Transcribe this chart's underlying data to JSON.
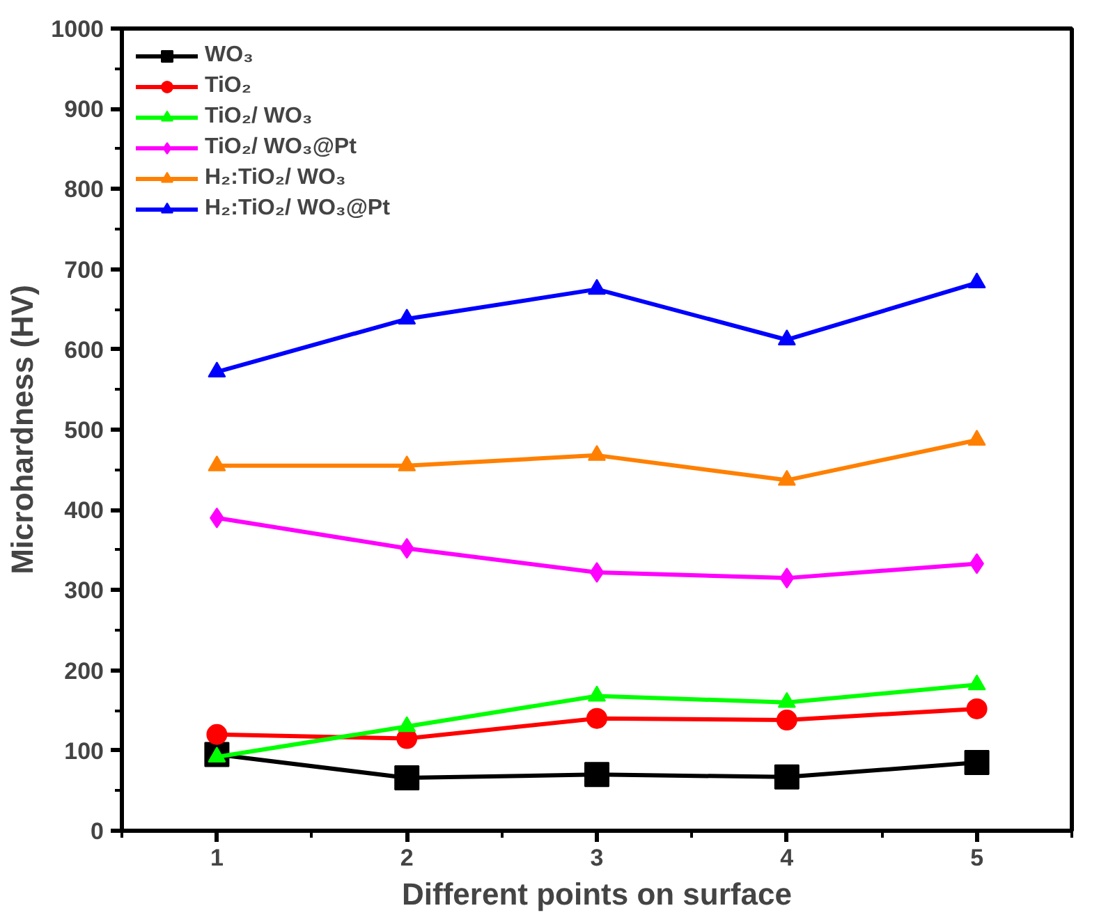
{
  "chart_data": {
    "type": "line",
    "xlabel": "Different points on surface",
    "ylabel": "Microhardness (HV)",
    "x": [
      1,
      2,
      3,
      4,
      5
    ],
    "xlim": [
      0.5,
      5.5
    ],
    "xticks": [
      1,
      2,
      3,
      4,
      5
    ],
    "ylim": [
      0,
      1000
    ],
    "yticks": [
      0,
      100,
      200,
      300,
      400,
      500,
      600,
      700,
      800,
      900,
      1000
    ],
    "grid": false,
    "legend": "top left",
    "line_style": "solid",
    "series": [
      {
        "name": "WO₃",
        "color": "#000000",
        "marker": "square",
        "values": [
          95,
          66,
          70,
          67,
          85
        ]
      },
      {
        "name": "TiO₂",
        "color": "#ff0000",
        "marker": "circle",
        "values": [
          120,
          115,
          140,
          138,
          152
        ]
      },
      {
        "name": "TiO₂/ WO₃",
        "color": "#00ff00",
        "marker": "triangle",
        "values": [
          92,
          130,
          168,
          160,
          182
        ]
      },
      {
        "name": "TiO₂/ WO₃@Pt",
        "color": "#ff00ff",
        "marker": "diamond",
        "values": [
          390,
          352,
          322,
          315,
          333
        ]
      },
      {
        "name": "H₂:TiO₂/ WO₃",
        "color": "#ff8000",
        "marker": "triangle",
        "values": [
          455,
          455,
          468,
          437,
          487
        ]
      },
      {
        "name": "H₂:TiO₂/ WO₃@Pt",
        "color": "#0000ff",
        "marker": "triangle",
        "values": [
          572,
          638,
          675,
          612,
          683
        ]
      }
    ]
  }
}
